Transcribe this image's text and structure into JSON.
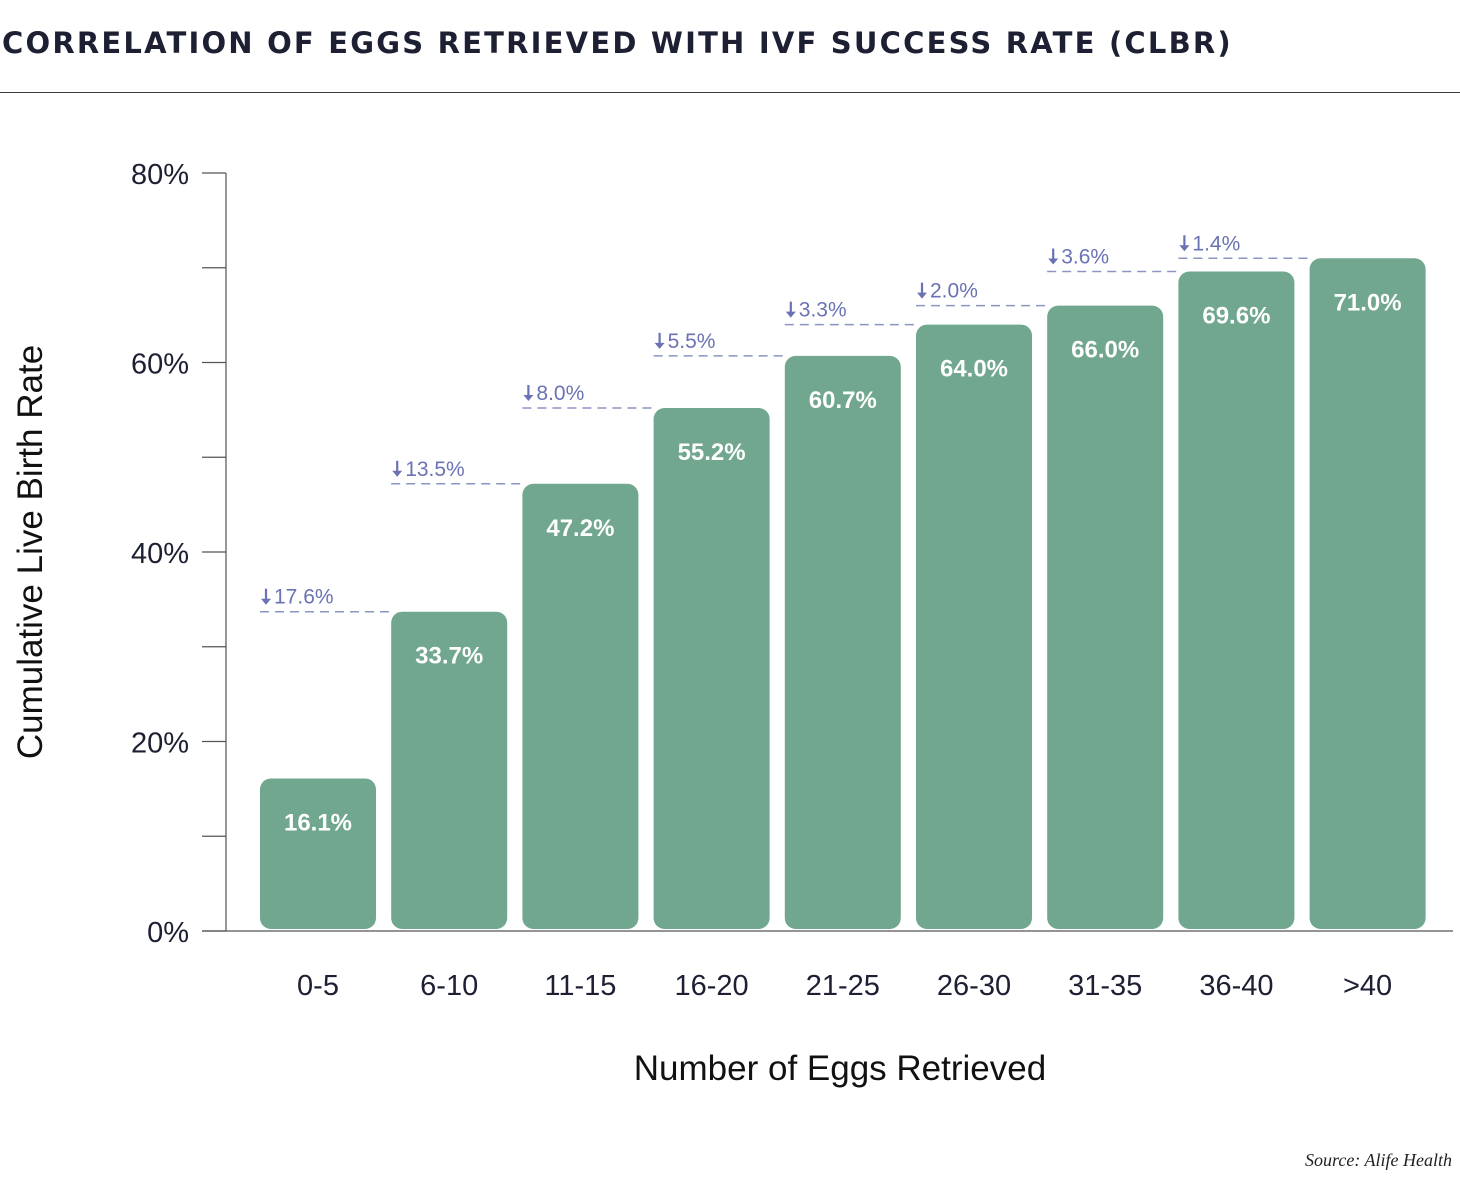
{
  "header": {
    "title": "CORRELATION OF EGGS RETRIEVED WITH IVF SUCCESS RATE (CLBR)"
  },
  "footer": {
    "source": "Source: Alife Health"
  },
  "chart_data": {
    "type": "bar",
    "title": "CORRELATION OF EGGS RETRIEVED WITH IVF SUCCESS RATE (CLBR)",
    "xlabel": "Number of Eggs Retrieved",
    "ylabel": "Cumulative Live Birth Rate",
    "ylim": [
      0,
      80
    ],
    "yticks": [
      0,
      20,
      40,
      60,
      80
    ],
    "yticks_minor": [
      10,
      30,
      50,
      70
    ],
    "ytick_labels": [
      "0%",
      "20%",
      "40%",
      "60%",
      "80%"
    ],
    "categories": [
      "0-5",
      "6-10",
      "11-15",
      "16-20",
      "21-25",
      "26-30",
      "31-35",
      "36-40",
      ">40"
    ],
    "values": [
      16.1,
      33.7,
      47.2,
      55.2,
      60.7,
      64.0,
      66.0,
      69.6,
      71.0
    ],
    "value_labels": [
      "16.1%",
      "33.7%",
      "47.2%",
      "55.2%",
      "60.7%",
      "64.0%",
      "66.0%",
      "69.6%",
      "71.0%"
    ],
    "gap_annotations": [
      "17.6%",
      "13.5%",
      "8.0%",
      "5.5%",
      "3.3%",
      "2.0%",
      "3.6%",
      "1.4%"
    ],
    "grid": false,
    "colors": {
      "bar": "#70a78e",
      "annotation": "#6a72b3",
      "text": "#1d1f33"
    }
  }
}
